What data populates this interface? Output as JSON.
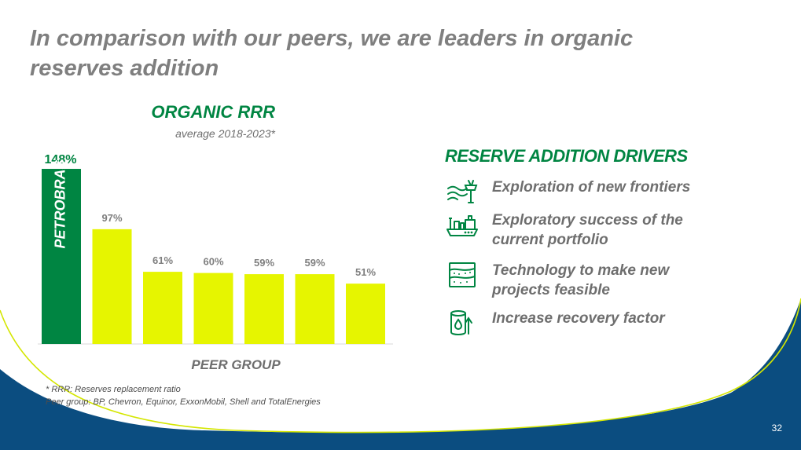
{
  "slide": {
    "title": "In comparison with our peers, we are leaders in organic reserves addition",
    "page_number": "32"
  },
  "chart_data": {
    "type": "bar",
    "title": "ORGANIC RRR",
    "subtitle": "average 2018-2023*",
    "xlabel": "PEER GROUP",
    "highlight_label": "PETROBRAS",
    "data_labels": [
      "148%",
      "97%",
      "61%",
      "60%",
      "59%",
      "59%",
      "51%"
    ],
    "values": [
      148,
      97,
      61,
      60,
      59,
      59,
      51
    ],
    "colors": {
      "petrobras": "#008542",
      "peers": "#e6f500"
    },
    "ylim": [
      0,
      150
    ]
  },
  "footnotes": {
    "line1": "* RRR: Reserves replacement ratio",
    "line2": "Peer group: BP, Chevron, Equinor, ExxonMobil, Shell and TotalEnergies"
  },
  "drivers": {
    "title": "RESERVE ADDITION DRIVERS",
    "items": [
      {
        "icon": "offshore-exploration-icon",
        "label": "Exploration of new frontiers"
      },
      {
        "icon": "fpso-platform-icon",
        "label": "Exploratory success of the current portfolio"
      },
      {
        "icon": "geology-layers-icon",
        "label": "Technology to make new projects feasible"
      },
      {
        "icon": "oil-barrel-recovery-icon",
        "label": "Increase recovery factor"
      }
    ]
  }
}
